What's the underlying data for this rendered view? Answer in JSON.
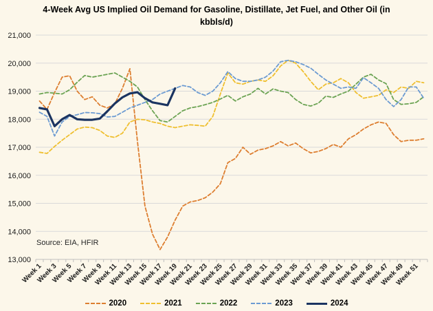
{
  "title": "4-Week Avg US Implied Oil Demand for Gasoline, Distillate, Jet Fuel, and Other Oil (in kbbls/d)",
  "source": "Source: EIA, HFIR",
  "chart_data": {
    "type": "line",
    "title": "4-Week Avg US Implied Oil Demand for Gasoline, Distillate, Jet Fuel, and Other Oil (in kbbls/d)",
    "xlabel": "",
    "ylabel": "",
    "ylim": [
      13000,
      21000
    ],
    "y_tick_step": 1000,
    "y_tick_labels": [
      "13,000",
      "14,000",
      "15,000",
      "16,000",
      "17,000",
      "18,000",
      "19,000",
      "20,000",
      "21,000"
    ],
    "x_categories_count": 52,
    "x_tick_labels": [
      "Week 1",
      "Week 3",
      "Week 5",
      "Week 7",
      "Week 9",
      "Week 11",
      "Week 13",
      "Week 15",
      "Week 17",
      "Week 19",
      "Week 21",
      "Week 23",
      "Week 25",
      "Week 27",
      "Week 29",
      "Week 31",
      "Week 33",
      "Week 35",
      "Week 37",
      "Week 39",
      "Week 41",
      "Week 43",
      "Week 45",
      "Week 47",
      "Week 49",
      "Week 51"
    ],
    "grid": true,
    "legend_position": "bottom",
    "colors": {
      "background": "#fcf7ea",
      "gridline": "#d9d9d9",
      "axis": "#bfbfbf",
      "2020": "#dd7e30",
      "2021": "#efbf2f",
      "2022": "#6ba353",
      "2023": "#6c9bd2",
      "2024": "#1b3461"
    },
    "series": [
      {
        "name": "2020",
        "color": "#dd7e30",
        "style": "dashed",
        "values": [
          18650,
          18350,
          18950,
          19500,
          19550,
          19000,
          18700,
          18800,
          18500,
          18400,
          18550,
          19100,
          19800,
          17200,
          14900,
          13900,
          13350,
          13800,
          14400,
          14900,
          15050,
          15100,
          15200,
          15400,
          15700,
          16450,
          16600,
          17000,
          16750,
          16900,
          16950,
          17050,
          17200,
          17050,
          17150,
          16950,
          16800,
          16850,
          16950,
          17100,
          17000,
          17300,
          17450,
          17650,
          17800,
          17900,
          17850,
          17450,
          17200,
          17250,
          17250,
          17300
        ]
      },
      {
        "name": "2021",
        "color": "#efbf2f",
        "style": "dashed",
        "values": [
          16820,
          16780,
          17030,
          17250,
          17450,
          17650,
          17720,
          17700,
          17600,
          17400,
          17350,
          17500,
          17900,
          18000,
          17980,
          17900,
          17850,
          17750,
          17700,
          17750,
          17800,
          17780,
          17750,
          18100,
          18900,
          19650,
          19300,
          19250,
          19350,
          19400,
          19350,
          19550,
          19900,
          20100,
          20000,
          19700,
          19350,
          19050,
          19250,
          19300,
          19450,
          19300,
          18950,
          18750,
          18800,
          18850,
          19050,
          18950,
          19150,
          19100,
          19350,
          19300
        ]
      },
      {
        "name": "2022",
        "color": "#6ba353",
        "style": "dashed",
        "values": [
          18900,
          18950,
          18930,
          18900,
          19050,
          19320,
          19560,
          19500,
          19550,
          19600,
          19650,
          19500,
          19350,
          19150,
          18700,
          18300,
          17950,
          17900,
          18100,
          18300,
          18400,
          18450,
          18520,
          18600,
          18720,
          18850,
          18650,
          18800,
          18900,
          19100,
          18900,
          19080,
          19000,
          18950,
          18700,
          18530,
          18470,
          18570,
          18820,
          18780,
          18900,
          19000,
          19250,
          19500,
          19600,
          19400,
          19270,
          18700,
          18530,
          18550,
          18600,
          18800
        ]
      },
      {
        "name": "2023",
        "color": "#6c9bd2",
        "style": "dashed",
        "values": [
          18250,
          18100,
          17400,
          17900,
          18100,
          18160,
          18240,
          18230,
          18200,
          18080,
          18100,
          18250,
          18400,
          18500,
          18600,
          18700,
          18900,
          19000,
          19100,
          19200,
          19150,
          18950,
          18850,
          19000,
          19300,
          19700,
          19450,
          19350,
          19350,
          19400,
          19500,
          19720,
          20050,
          20100,
          20050,
          19950,
          19820,
          19600,
          19400,
          19250,
          19100,
          19150,
          19100,
          19480,
          19300,
          19100,
          18700,
          18450,
          18700,
          19150,
          19150,
          18750
        ]
      },
      {
        "name": "2024",
        "color": "#1b3461",
        "style": "solid",
        "values": [
          18400,
          18350,
          17750,
          18000,
          18150,
          18000,
          17980,
          17980,
          18020,
          18280,
          18560,
          18780,
          18920,
          18960,
          18750,
          18600,
          18550,
          18500,
          19100
        ]
      }
    ]
  }
}
